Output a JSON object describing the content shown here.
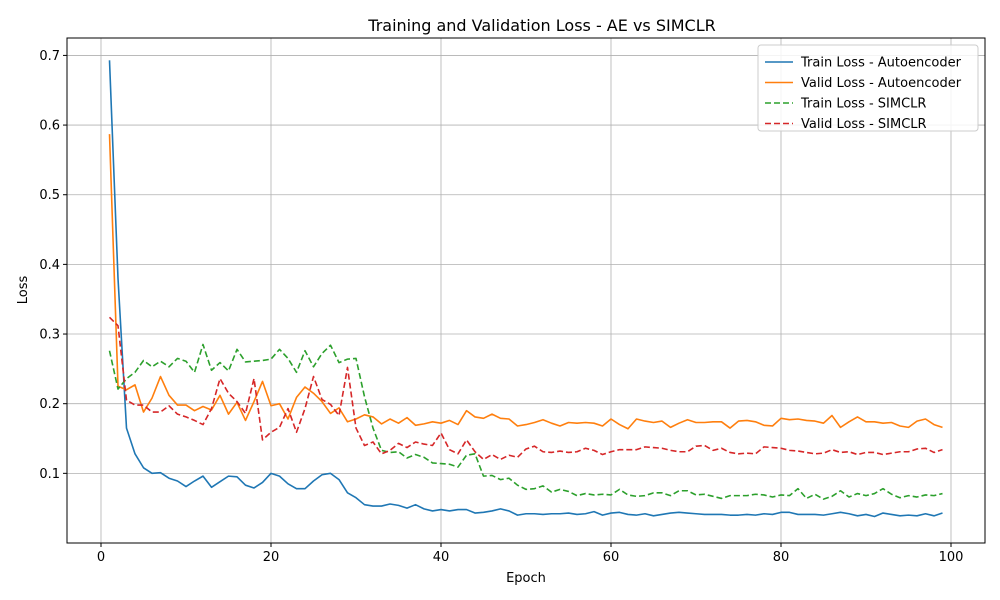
{
  "chart_data": {
    "type": "line",
    "title": "Training and Validation Loss - AE vs SIMCLR",
    "xlabel": "Epoch",
    "ylabel": "Loss",
    "xlim": [
      -4,
      104
    ],
    "ylim": [
      0.0,
      0.725
    ],
    "xticks": [
      0,
      20,
      40,
      60,
      80,
      100
    ],
    "yticks": [
      0.1,
      0.2,
      0.3,
      0.4,
      0.5,
      0.6,
      0.7
    ],
    "xtick_labels": [
      "0",
      "20",
      "40",
      "60",
      "80",
      "100"
    ],
    "ytick_labels": [
      "0.1",
      "0.2",
      "0.3",
      "0.4",
      "0.5",
      "0.6",
      "0.7"
    ],
    "grid": true,
    "legend_position": "top-right",
    "x_start": 1,
    "series": [
      {
        "name": "Train Loss - Autoencoder",
        "color": "#1f77b4",
        "style": "solid",
        "values": [
          0.693,
          0.38,
          0.165,
          0.128,
          0.108,
          0.1,
          0.101,
          0.093,
          0.089,
          0.081,
          0.089,
          0.096,
          0.08,
          0.088,
          0.096,
          0.095,
          0.083,
          0.079,
          0.087,
          0.1,
          0.096,
          0.085,
          0.078,
          0.078,
          0.089,
          0.098,
          0.1,
          0.091,
          0.072,
          0.065,
          0.055,
          0.053,
          0.053,
          0.056,
          0.054,
          0.05,
          0.055,
          0.049,
          0.046,
          0.048,
          0.046,
          0.048,
          0.048,
          0.043,
          0.044,
          0.046,
          0.049,
          0.046,
          0.04,
          0.042,
          0.042,
          0.041,
          0.042,
          0.042,
          0.043,
          0.041,
          0.042,
          0.045,
          0.04,
          0.043,
          0.044,
          0.041,
          0.04,
          0.042,
          0.039,
          0.041,
          0.043,
          0.044,
          0.043,
          0.042,
          0.041,
          0.041,
          0.041,
          0.04,
          0.04,
          0.041,
          0.04,
          0.042,
          0.041,
          0.044,
          0.044,
          0.041,
          0.041,
          0.041,
          0.04,
          0.042,
          0.044,
          0.042,
          0.039,
          0.041,
          0.038,
          0.043,
          0.041,
          0.039,
          0.04,
          0.039,
          0.042,
          0.039,
          0.043
        ]
      },
      {
        "name": "Valid Loss - Autoencoder",
        "color": "#ff7f0e",
        "style": "solid",
        "values": [
          0.587,
          0.225,
          0.22,
          0.227,
          0.188,
          0.208,
          0.239,
          0.212,
          0.198,
          0.198,
          0.19,
          0.196,
          0.191,
          0.212,
          0.185,
          0.202,
          0.176,
          0.203,
          0.232,
          0.197,
          0.2,
          0.178,
          0.209,
          0.224,
          0.215,
          0.203,
          0.186,
          0.194,
          0.174,
          0.178,
          0.184,
          0.181,
          0.171,
          0.178,
          0.172,
          0.18,
          0.169,
          0.171,
          0.174,
          0.172,
          0.176,
          0.17,
          0.19,
          0.181,
          0.179,
          0.185,
          0.179,
          0.178,
          0.168,
          0.17,
          0.173,
          0.177,
          0.172,
          0.168,
          0.173,
          0.172,
          0.173,
          0.172,
          0.168,
          0.178,
          0.17,
          0.164,
          0.178,
          0.175,
          0.173,
          0.175,
          0.166,
          0.172,
          0.177,
          0.173,
          0.173,
          0.174,
          0.174,
          0.165,
          0.175,
          0.176,
          0.174,
          0.169,
          0.168,
          0.179,
          0.177,
          0.178,
          0.176,
          0.175,
          0.172,
          0.183,
          0.166,
          0.174,
          0.181,
          0.174,
          0.174,
          0.172,
          0.173,
          0.168,
          0.166,
          0.175,
          0.178,
          0.17,
          0.166
        ]
      },
      {
        "name": "Train Loss - SIMCLR",
        "color": "#2ca02c",
        "style": "dashed",
        "values": [
          0.276,
          0.221,
          0.236,
          0.245,
          0.262,
          0.253,
          0.261,
          0.253,
          0.265,
          0.261,
          0.245,
          0.285,
          0.248,
          0.259,
          0.247,
          0.278,
          0.26,
          0.261,
          0.262,
          0.264,
          0.278,
          0.265,
          0.245,
          0.276,
          0.253,
          0.272,
          0.284,
          0.259,
          0.264,
          0.265,
          0.21,
          0.165,
          0.133,
          0.13,
          0.131,
          0.122,
          0.127,
          0.123,
          0.115,
          0.114,
          0.113,
          0.109,
          0.126,
          0.128,
          0.096,
          0.097,
          0.091,
          0.093,
          0.083,
          0.077,
          0.078,
          0.082,
          0.073,
          0.077,
          0.074,
          0.068,
          0.071,
          0.069,
          0.07,
          0.069,
          0.077,
          0.069,
          0.067,
          0.068,
          0.072,
          0.072,
          0.068,
          0.075,
          0.075,
          0.069,
          0.07,
          0.067,
          0.064,
          0.068,
          0.068,
          0.068,
          0.07,
          0.069,
          0.066,
          0.069,
          0.068,
          0.078,
          0.064,
          0.07,
          0.063,
          0.067,
          0.075,
          0.066,
          0.071,
          0.068,
          0.071,
          0.078,
          0.07,
          0.065,
          0.068,
          0.066,
          0.069,
          0.068,
          0.071
        ]
      },
      {
        "name": "Valid Loss - SIMCLR",
        "color": "#d62728",
        "style": "dashed",
        "values": [
          0.324,
          0.312,
          0.205,
          0.198,
          0.198,
          0.188,
          0.188,
          0.197,
          0.185,
          0.181,
          0.176,
          0.17,
          0.193,
          0.236,
          0.215,
          0.203,
          0.186,
          0.236,
          0.148,
          0.159,
          0.166,
          0.193,
          0.159,
          0.193,
          0.239,
          0.206,
          0.199,
          0.183,
          0.252,
          0.165,
          0.14,
          0.145,
          0.128,
          0.133,
          0.143,
          0.137,
          0.145,
          0.142,
          0.14,
          0.158,
          0.134,
          0.128,
          0.148,
          0.131,
          0.12,
          0.127,
          0.12,
          0.126,
          0.123,
          0.135,
          0.139,
          0.131,
          0.13,
          0.132,
          0.13,
          0.131,
          0.136,
          0.133,
          0.127,
          0.131,
          0.134,
          0.134,
          0.134,
          0.138,
          0.137,
          0.136,
          0.133,
          0.131,
          0.131,
          0.139,
          0.14,
          0.133,
          0.136,
          0.13,
          0.128,
          0.129,
          0.128,
          0.138,
          0.137,
          0.136,
          0.133,
          0.132,
          0.13,
          0.128,
          0.129,
          0.134,
          0.13,
          0.131,
          0.127,
          0.13,
          0.13,
          0.127,
          0.129,
          0.131,
          0.131,
          0.135,
          0.136,
          0.13,
          0.134
        ]
      }
    ]
  }
}
